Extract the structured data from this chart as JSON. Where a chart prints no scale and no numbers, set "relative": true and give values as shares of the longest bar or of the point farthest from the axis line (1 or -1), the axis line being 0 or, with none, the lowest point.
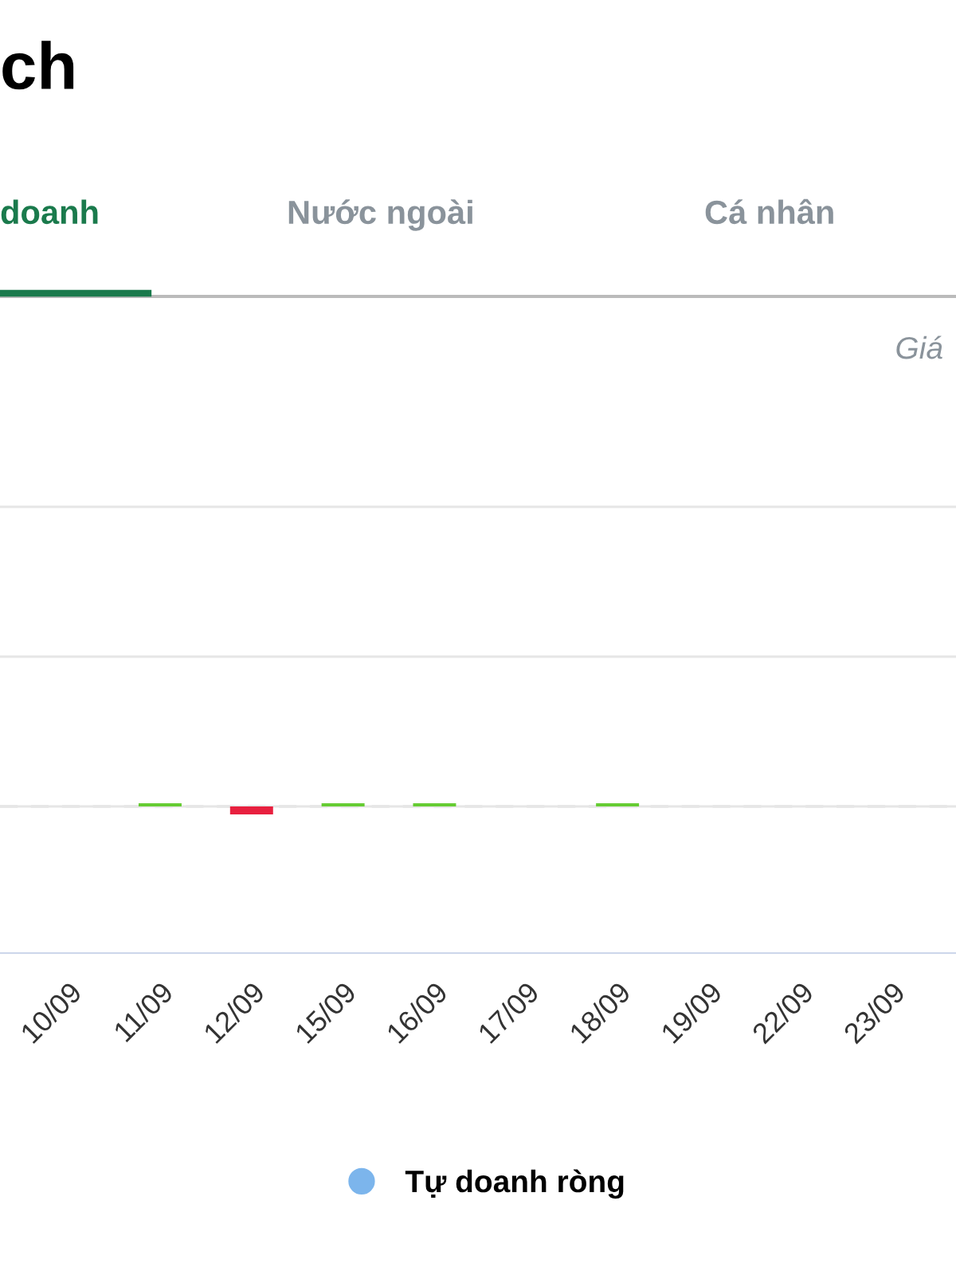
{
  "chart_data": {
    "type": "bar",
    "relative": true,
    "title": "ch",
    "annotations": [
      "doanh",
      "Nước ngoài",
      "Cá nhân",
      "Giá"
    ],
    "categories": [
      "10/09",
      "11/09",
      "12/09",
      "15/09",
      "16/09",
      "17/09",
      "18/09",
      "19/09",
      "22/09",
      "23/09"
    ],
    "series": [
      {
        "name": "Tự doanh ròng",
        "color": "#7cb5ec",
        "values": [
          0,
          0.4,
          -1,
          0.4,
          0.4,
          0,
          0.4,
          0,
          0,
          0
        ],
        "colors": [
          "#66cc33",
          "#66cc33",
          "#e8203f",
          "#66cc33",
          "#66cc33",
          "#66cc33",
          "#66cc33",
          "#66cc33",
          "#66cc33",
          "#66cc33"
        ]
      }
    ],
    "grid": "y",
    "legend": "bottom"
  }
}
